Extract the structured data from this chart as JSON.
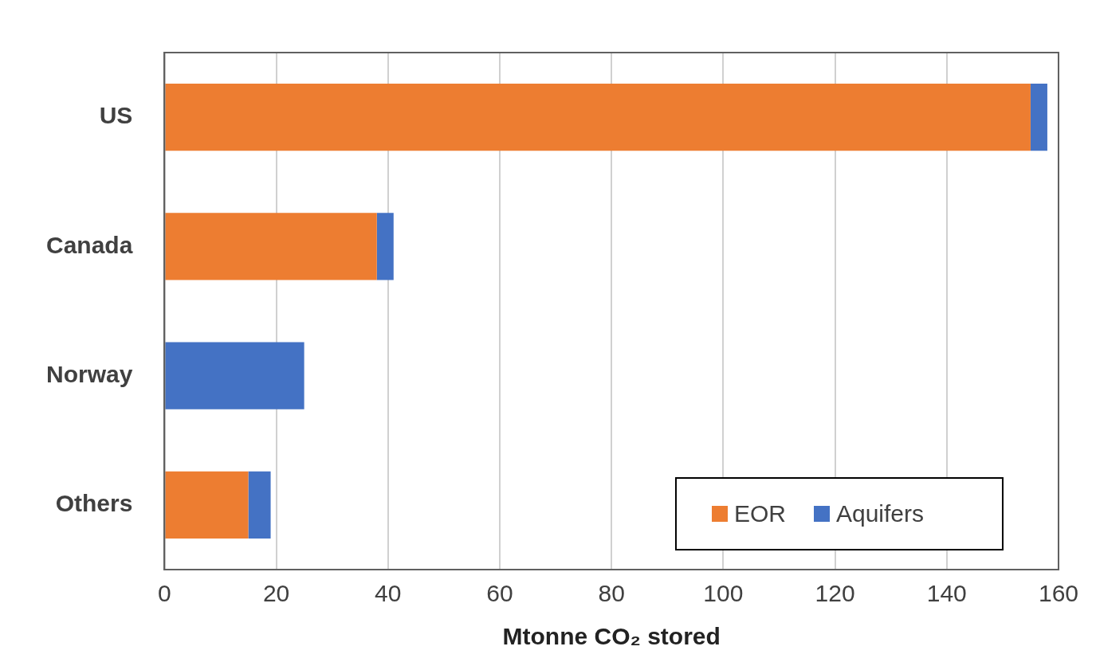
{
  "chart_data": {
    "type": "bar",
    "orientation": "horizontal",
    "stacked": true,
    "xlabel": "Mtonne CO₂ stored",
    "categories": [
      "US",
      "Canada",
      "Norway",
      "Others"
    ],
    "series": [
      {
        "name": "EOR",
        "color": "#ed7d31",
        "values": [
          155,
          38,
          0,
          15
        ]
      },
      {
        "name": "Aquifers",
        "color": "#4472c4",
        "values": [
          3,
          3,
          25,
          4
        ]
      }
    ],
    "xlim": [
      0,
      160
    ],
    "xticks": [
      0,
      20,
      40,
      60,
      80,
      100,
      120,
      140,
      160
    ],
    "grid": "x",
    "legend": "bottom right"
  }
}
